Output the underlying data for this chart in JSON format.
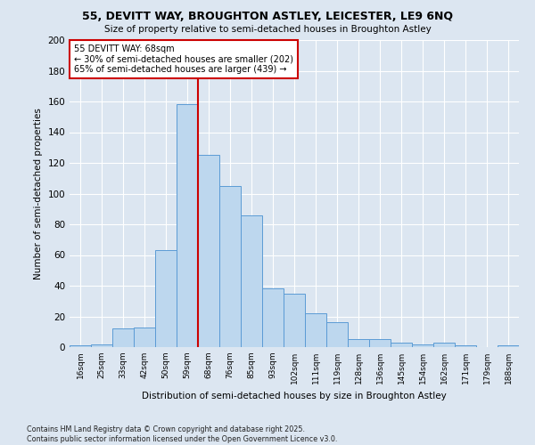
{
  "title1": "55, DEVITT WAY, BROUGHTON ASTLEY, LEICESTER, LE9 6NQ",
  "title2": "Size of property relative to semi-detached houses in Broughton Astley",
  "xlabel": "Distribution of semi-detached houses by size in Broughton Astley",
  "ylabel": "Number of semi-detached properties",
  "categories": [
    "16sqm",
    "25sqm",
    "33sqm",
    "42sqm",
    "50sqm",
    "59sqm",
    "68sqm",
    "76sqm",
    "85sqm",
    "93sqm",
    "102sqm",
    "111sqm",
    "119sqm",
    "128sqm",
    "136sqm",
    "145sqm",
    "154sqm",
    "162sqm",
    "171sqm",
    "179sqm",
    "188sqm"
  ],
  "values": [
    1,
    2,
    12,
    13,
    63,
    158,
    125,
    105,
    86,
    38,
    35,
    22,
    16,
    5,
    5,
    3,
    2,
    3,
    1,
    0,
    1
  ],
  "bar_color": "#BDD7EE",
  "bar_edge_color": "#5B9BD5",
  "bg_color": "#DCE6F1",
  "grid_color": "#ffffff",
  "ref_line_color": "#CC0000",
  "annotation_title": "55 DEVITT WAY: 68sqm",
  "annotation_line1": "← 30% of semi-detached houses are smaller (202)",
  "annotation_line2": "65% of semi-detached houses are larger (439) →",
  "annotation_box_color": "#ffffff",
  "annotation_box_edge": "#CC0000",
  "footer": "Contains HM Land Registry data © Crown copyright and database right 2025.\nContains public sector information licensed under the Open Government Licence v3.0.",
  "ylim": [
    0,
    200
  ],
  "yticks": [
    0,
    20,
    40,
    60,
    80,
    100,
    120,
    140,
    160,
    180,
    200
  ],
  "ref_idx": 5
}
